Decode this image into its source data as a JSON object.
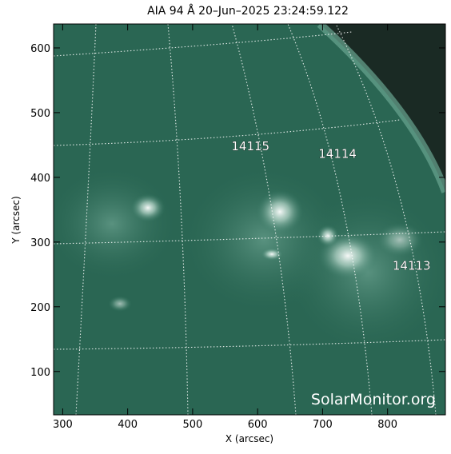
{
  "chart_data": {
    "type": "image",
    "title": "AIA 94 Å 20–Jun–2025 23:24:59.122",
    "xlabel": "X (arcsec)",
    "ylabel": "Y (arcsec)",
    "xlim": [
      286,
      889
    ],
    "ylim": [
      33,
      637
    ],
    "xticks": [
      300,
      400,
      500,
      600,
      700,
      800
    ],
    "yticks": [
      100,
      200,
      300,
      400,
      500,
      600
    ],
    "annotations": [
      {
        "text": "14115",
        "x": 589,
        "y": 442
      },
      {
        "text": "14114",
        "x": 723,
        "y": 430
      },
      {
        "text": "14113",
        "x": 837,
        "y": 257
      }
    ],
    "watermark": "SolarMonitor.org"
  }
}
